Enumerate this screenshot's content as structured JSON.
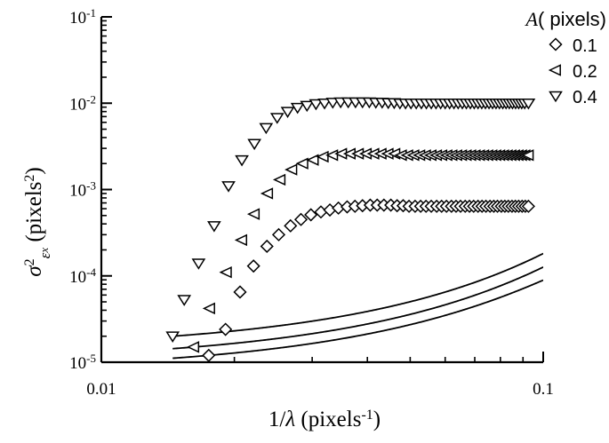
{
  "chart_data": {
    "type": "scatter",
    "title": "",
    "x_scale": "log",
    "y_scale": "log",
    "xlim": [
      0.01,
      0.1
    ],
    "ylim": [
      1e-05,
      0.1
    ],
    "grid": false,
    "legend_position": "top-right",
    "xlabel": {
      "main": "1/",
      "var": "λ",
      "unit_open": " (pixels",
      "unit_sup": "-1",
      "unit_close": ")"
    },
    "ylabel": {
      "sigma": "σ",
      "sigma_sup": "2",
      "eps": "ε",
      "eps_sub": "x",
      "unit_open": " (pixels",
      "unit_sup": "2",
      "unit_close": ")"
    },
    "x_ticks": [
      {
        "value": 0.01,
        "label": "0.01"
      },
      {
        "value": 0.1,
        "label": "0.1"
      }
    ],
    "y_ticks": [
      {
        "value": 0.1,
        "base": "10",
        "exp": "-1"
      },
      {
        "value": 0.01,
        "base": "10",
        "exp": "-2"
      },
      {
        "value": 0.001,
        "base": "10",
        "exp": "-3"
      },
      {
        "value": 0.0001,
        "base": "10",
        "exp": "-4"
      },
      {
        "value": 1e-05,
        "base": "10",
        "exp": "-5"
      }
    ],
    "legend_title": {
      "var": "A",
      "rest": "( pixels)"
    },
    "series": [
      {
        "name": "0.1",
        "marker": "diamond",
        "plateau": 0.00061,
        "x": [
          0.0175,
          0.0191,
          0.0206,
          0.0221,
          0.0237,
          0.0252,
          0.0268,
          0.0283,
          0.0298,
          0.0314,
          0.0329,
          0.0344,
          0.036,
          0.0375,
          0.039,
          0.0406,
          0.0421,
          0.0436,
          0.0452,
          0.0467,
          0.0482,
          0.0497,
          0.0513,
          0.0528,
          0.0543,
          0.0558,
          0.0574,
          0.0589,
          0.0604,
          0.062,
          0.0635,
          0.065,
          0.0666,
          0.0681,
          0.0696,
          0.0712,
          0.0727,
          0.0742,
          0.0758,
          0.0773,
          0.0788,
          0.0804,
          0.0819,
          0.0834,
          0.085,
          0.0865,
          0.088,
          0.0896,
          0.0911,
          0.0926
        ],
        "y": [
          1.2e-05,
          2.4e-05,
          6.5e-05,
          0.00013,
          0.00022,
          0.0003,
          0.00038,
          0.00045,
          0.00051,
          0.00055,
          0.00058,
          0.00061,
          0.00063,
          0.00064,
          0.00065,
          0.00066,
          0.00066,
          0.00066,
          0.00066,
          0.00065,
          0.00065,
          0.00064,
          0.00064,
          0.00064,
          0.00064,
          0.00064,
          0.00064,
          0.00064,
          0.00064,
          0.00064,
          0.00064,
          0.00064,
          0.00064,
          0.00064,
          0.00064,
          0.00064,
          0.00064,
          0.00064,
          0.00064,
          0.00064,
          0.00064,
          0.00064,
          0.00064,
          0.00064,
          0.00064,
          0.00064,
          0.00064,
          0.00064,
          0.00064,
          0.00064
        ]
      },
      {
        "name": "0.2",
        "marker": "triangle-left",
        "plateau": 0.0024,
        "x": [
          0.0162,
          0.0176,
          0.0192,
          0.0208,
          0.0222,
          0.0238,
          0.0254,
          0.027,
          0.0286,
          0.0302,
          0.0318,
          0.0334,
          0.035,
          0.0366,
          0.0382,
          0.0398,
          0.0414,
          0.043,
          0.0446,
          0.0462,
          0.0478,
          0.0494,
          0.051,
          0.0526,
          0.0542,
          0.0558,
          0.0574,
          0.059,
          0.0606,
          0.0622,
          0.0638,
          0.0654,
          0.067,
          0.0686,
          0.0702,
          0.0718,
          0.0734,
          0.075,
          0.0766,
          0.0782,
          0.0798,
          0.0814,
          0.083,
          0.0846,
          0.0862,
          0.0878,
          0.0894,
          0.091,
          0.0926
        ],
        "y": [
          1.5e-05,
          4.2e-05,
          0.00011,
          0.00026,
          0.00052,
          0.0009,
          0.0013,
          0.0017,
          0.002,
          0.0022,
          0.0024,
          0.0025,
          0.0026,
          0.0026,
          0.0026,
          0.0026,
          0.0026,
          0.0026,
          0.0026,
          0.0026,
          0.0025,
          0.0025,
          0.0025,
          0.0025,
          0.0025,
          0.0025,
          0.0025,
          0.0025,
          0.0025,
          0.0025,
          0.0025,
          0.0025,
          0.0025,
          0.0025,
          0.0025,
          0.0025,
          0.0025,
          0.0025,
          0.0025,
          0.0025,
          0.0025,
          0.0025,
          0.0025,
          0.0025,
          0.0025,
          0.0025,
          0.0025,
          0.0025,
          0.0025
        ]
      },
      {
        "name": "0.4",
        "marker": "triangle-down",
        "plateau": 0.0095,
        "x": [
          0.0145,
          0.0154,
          0.0166,
          0.018,
          0.0194,
          0.0208,
          0.0222,
          0.0236,
          0.025,
          0.0264,
          0.0278,
          0.0292,
          0.0306,
          0.032,
          0.0334,
          0.0348,
          0.0362,
          0.0376,
          0.039,
          0.0404,
          0.0418,
          0.0432,
          0.0446,
          0.046,
          0.0474,
          0.0488,
          0.0502,
          0.0516,
          0.053,
          0.0544,
          0.0558,
          0.0572,
          0.0586,
          0.06,
          0.0614,
          0.0628,
          0.0642,
          0.0656,
          0.067,
          0.0684,
          0.0698,
          0.0712,
          0.0726,
          0.074,
          0.0754,
          0.0768,
          0.0782,
          0.0796,
          0.081,
          0.0824,
          0.0838,
          0.0852,
          0.0866,
          0.088,
          0.0894,
          0.0908,
          0.0926
        ],
        "y": [
          2e-05,
          5.3e-05,
          0.00014,
          0.00038,
          0.0011,
          0.0022,
          0.0034,
          0.0052,
          0.0068,
          0.008,
          0.0089,
          0.0094,
          0.0098,
          0.01,
          0.0102,
          0.0103,
          0.0103,
          0.0103,
          0.0103,
          0.0103,
          0.0102,
          0.0102,
          0.0101,
          0.0101,
          0.01,
          0.01,
          0.01,
          0.01,
          0.01,
          0.01,
          0.01,
          0.01,
          0.01,
          0.01,
          0.01,
          0.01,
          0.01,
          0.01,
          0.01,
          0.01,
          0.01,
          0.01,
          0.01,
          0.01,
          0.01,
          0.01,
          0.01,
          0.01,
          0.01,
          0.01,
          0.01,
          0.01,
          0.01,
          0.01,
          0.01,
          0.01,
          0.01
        ]
      }
    ]
  }
}
